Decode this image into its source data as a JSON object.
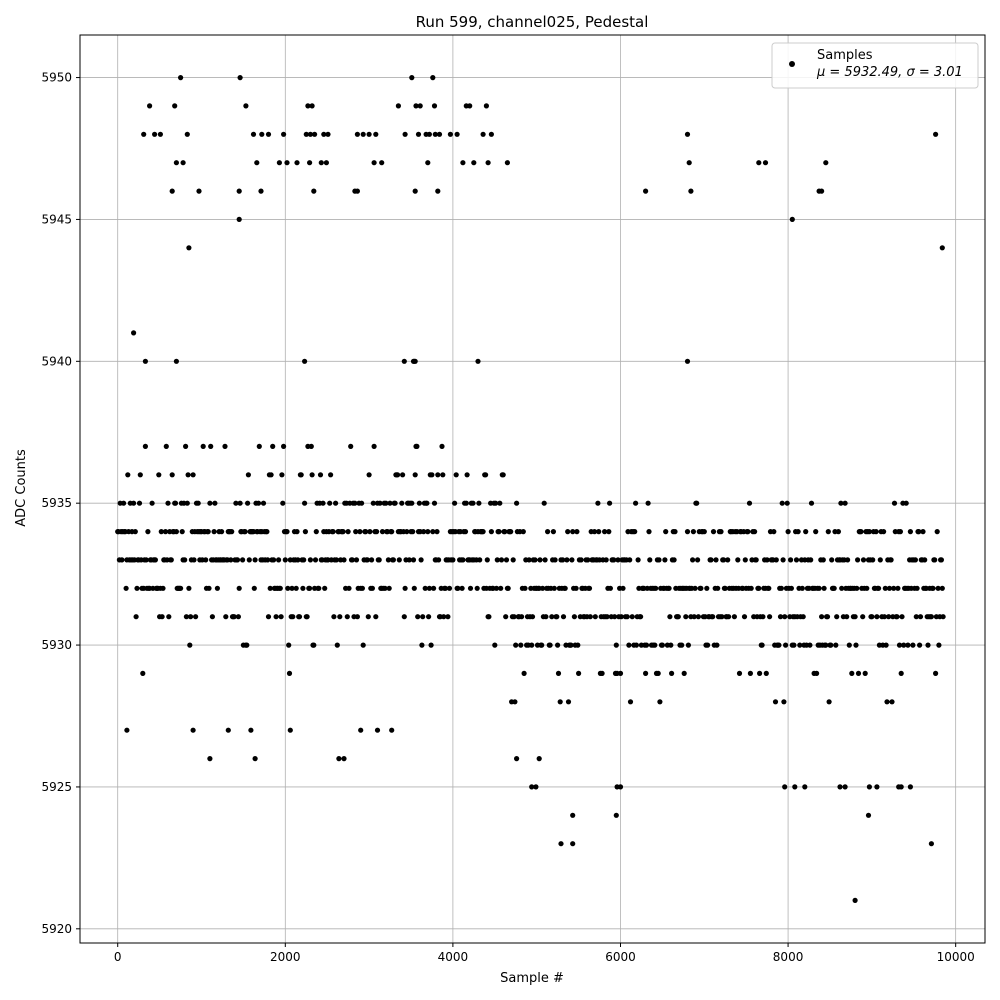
{
  "chart_data": {
    "type": "scatter",
    "title": "Run 599, channel025, Pedestal",
    "xlabel": "Sample #",
    "ylabel": "ADC Counts",
    "xlim": [
      -450,
      10350
    ],
    "ylim": [
      5919.5,
      5951.5
    ],
    "xticks": [
      0,
      2000,
      4000,
      6000,
      8000,
      10000
    ],
    "yticks": [
      5920,
      5925,
      5930,
      5935,
      5940,
      5945,
      5950
    ],
    "grid": true,
    "legend_position": "top-right",
    "series": [
      {
        "name": "Samples",
        "label_line2": "μ = 5932.49, σ = 3.01",
        "color": "#000000",
        "marker": "circle",
        "x_range": [
          0,
          9850
        ],
        "mean": 5932.49,
        "std": 3.01,
        "outliers": [
          [
            190,
            5941
          ],
          [
            330,
            5940
          ],
          [
            700,
            5940
          ],
          [
            2230,
            5940
          ],
          [
            3420,
            5940
          ],
          [
            3530,
            5940
          ],
          [
            4300,
            5940
          ],
          [
            6800,
            5940
          ],
          [
            3550,
            5940
          ],
          [
            3540,
            5940
          ],
          [
            310,
            5948
          ],
          [
            380,
            5949
          ],
          [
            440,
            5948
          ],
          [
            510,
            5948
          ],
          [
            650,
            5946
          ],
          [
            680,
            5949
          ],
          [
            700,
            5947
          ],
          [
            750,
            5950
          ],
          [
            780,
            5947
          ],
          [
            830,
            5948
          ],
          [
            850,
            5944
          ],
          [
            970,
            5946
          ],
          [
            1450,
            5945
          ],
          [
            1450,
            5946
          ],
          [
            1460,
            5950
          ],
          [
            1530,
            5949
          ],
          [
            1620,
            5948
          ],
          [
            1660,
            5947
          ],
          [
            1710,
            5946
          ],
          [
            1720,
            5948
          ],
          [
            1800,
            5948
          ],
          [
            1930,
            5947
          ],
          [
            1980,
            5948
          ],
          [
            2020,
            5947
          ],
          [
            2140,
            5947
          ],
          [
            2250,
            5948
          ],
          [
            2270,
            5949
          ],
          [
            2290,
            5947
          ],
          [
            2300,
            5948
          ],
          [
            2320,
            5949
          ],
          [
            2340,
            5946
          ],
          [
            2350,
            5948
          ],
          [
            2430,
            5947
          ],
          [
            2460,
            5948
          ],
          [
            2490,
            5947
          ],
          [
            2510,
            5948
          ],
          [
            2830,
            5946
          ],
          [
            2860,
            5946
          ],
          [
            2860,
            5948
          ],
          [
            2930,
            5948
          ],
          [
            3000,
            5948
          ],
          [
            3060,
            5947
          ],
          [
            3080,
            5948
          ],
          [
            3150,
            5947
          ],
          [
            3350,
            5949
          ],
          [
            3430,
            5948
          ],
          [
            3510,
            5950
          ],
          [
            3550,
            5946
          ],
          [
            3560,
            5949
          ],
          [
            3590,
            5948
          ],
          [
            3610,
            5949
          ],
          [
            3680,
            5948
          ],
          [
            3700,
            5947
          ],
          [
            3720,
            5948
          ],
          [
            3760,
            5950
          ],
          [
            3780,
            5949
          ],
          [
            3790,
            5948
          ],
          [
            3820,
            5946
          ],
          [
            3840,
            5948
          ],
          [
            3970,
            5948
          ],
          [
            4050,
            5948
          ],
          [
            4120,
            5947
          ],
          [
            4160,
            5949
          ],
          [
            4200,
            5949
          ],
          [
            4250,
            5947
          ],
          [
            4360,
            5948
          ],
          [
            4400,
            5949
          ],
          [
            4420,
            5947
          ],
          [
            4460,
            5948
          ],
          [
            4650,
            5947
          ],
          [
            6300,
            5946
          ],
          [
            6800,
            5948
          ],
          [
            6820,
            5947
          ],
          [
            6840,
            5946
          ],
          [
            7650,
            5947
          ],
          [
            7730,
            5947
          ],
          [
            8050,
            5945
          ],
          [
            8370,
            5946
          ],
          [
            8400,
            5946
          ],
          [
            8450,
            5947
          ],
          [
            9760,
            5948
          ],
          [
            9840,
            5944
          ],
          [
            4760,
            5926
          ],
          [
            4940,
            5925
          ],
          [
            4990,
            5925
          ],
          [
            5030,
            5926
          ],
          [
            5290,
            5923
          ],
          [
            5430,
            5924
          ],
          [
            5430,
            5923
          ],
          [
            5950,
            5924
          ],
          [
            5960,
            5925
          ],
          [
            6000,
            5925
          ],
          [
            7960,
            5925
          ],
          [
            8080,
            5925
          ],
          [
            8200,
            5925
          ],
          [
            8620,
            5925
          ],
          [
            8680,
            5925
          ],
          [
            8800,
            5921
          ],
          [
            8960,
            5924
          ],
          [
            8970,
            5925
          ],
          [
            9060,
            5925
          ],
          [
            9320,
            5925
          ],
          [
            9350,
            5925
          ],
          [
            9460,
            5925
          ],
          [
            9710,
            5923
          ],
          [
            1100,
            5926
          ],
          [
            1640,
            5926
          ],
          [
            2060,
            5927
          ],
          [
            2640,
            5926
          ],
          [
            2700,
            5926
          ],
          [
            110,
            5927
          ],
          [
            900,
            5927
          ],
          [
            3270,
            5927
          ],
          [
            3100,
            5927
          ],
          [
            2900,
            5927
          ],
          [
            1320,
            5927
          ],
          [
            1590,
            5927
          ]
        ]
      }
    ]
  }
}
